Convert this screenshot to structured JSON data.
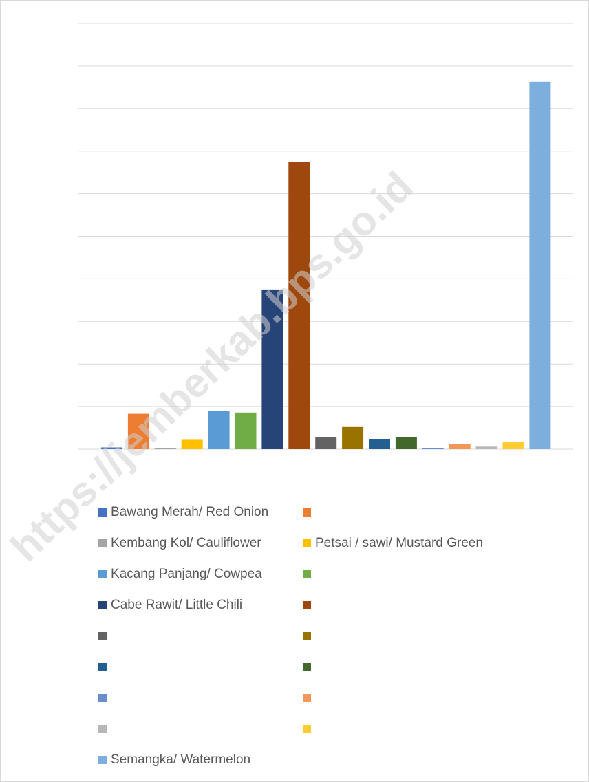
{
  "chart_data": {
    "type": "bar",
    "title": "",
    "xlabel": "",
    "ylabel": "",
    "ylim": [
      0,
      100
    ],
    "grid": true,
    "legend_position": "bottom",
    "series": [
      {
        "name": "Bawang Merah/ Red Onion",
        "value": 0.4,
        "color": "#4472c4"
      },
      {
        "name": "",
        "value": 8.3,
        "color": "#ed7d31"
      },
      {
        "name": "Kembang Kol/ Cauliflower",
        "value": 0.2,
        "color": "#a5a5a5"
      },
      {
        "name": "Petsai / sawi/ Mustard Green",
        "value": 2.2,
        "color": "#ffc000"
      },
      {
        "name": "Kacang Panjang/ Cowpea",
        "value": 8.9,
        "color": "#5b9bd5"
      },
      {
        "name": "",
        "value": 8.6,
        "color": "#70ad47"
      },
      {
        "name": "Cabe Rawit/ Little Chili",
        "value": 37.5,
        "color": "#264478"
      },
      {
        "name": "",
        "value": 67.4,
        "color": "#9e480e"
      },
      {
        "name": "",
        "value": 2.8,
        "color": "#636363"
      },
      {
        "name": "",
        "value": 5.2,
        "color": "#997300"
      },
      {
        "name": "",
        "value": 2.4,
        "color": "#255e91"
      },
      {
        "name": "",
        "value": 2.8,
        "color": "#43682b"
      },
      {
        "name": "",
        "value": 0.2,
        "color": "#698ed0"
      },
      {
        "name": "",
        "value": 1.3,
        "color": "#f1975a"
      },
      {
        "name": "",
        "value": 0.6,
        "color": "#b7b7b7"
      },
      {
        "name": "",
        "value": 1.7,
        "color": "#ffcd33"
      },
      {
        "name": "Semangka/ Watermelon",
        "value": 86.3,
        "color": "#7cafdd"
      }
    ]
  },
  "watermark": "https://jemberkab.bps.go.id"
}
